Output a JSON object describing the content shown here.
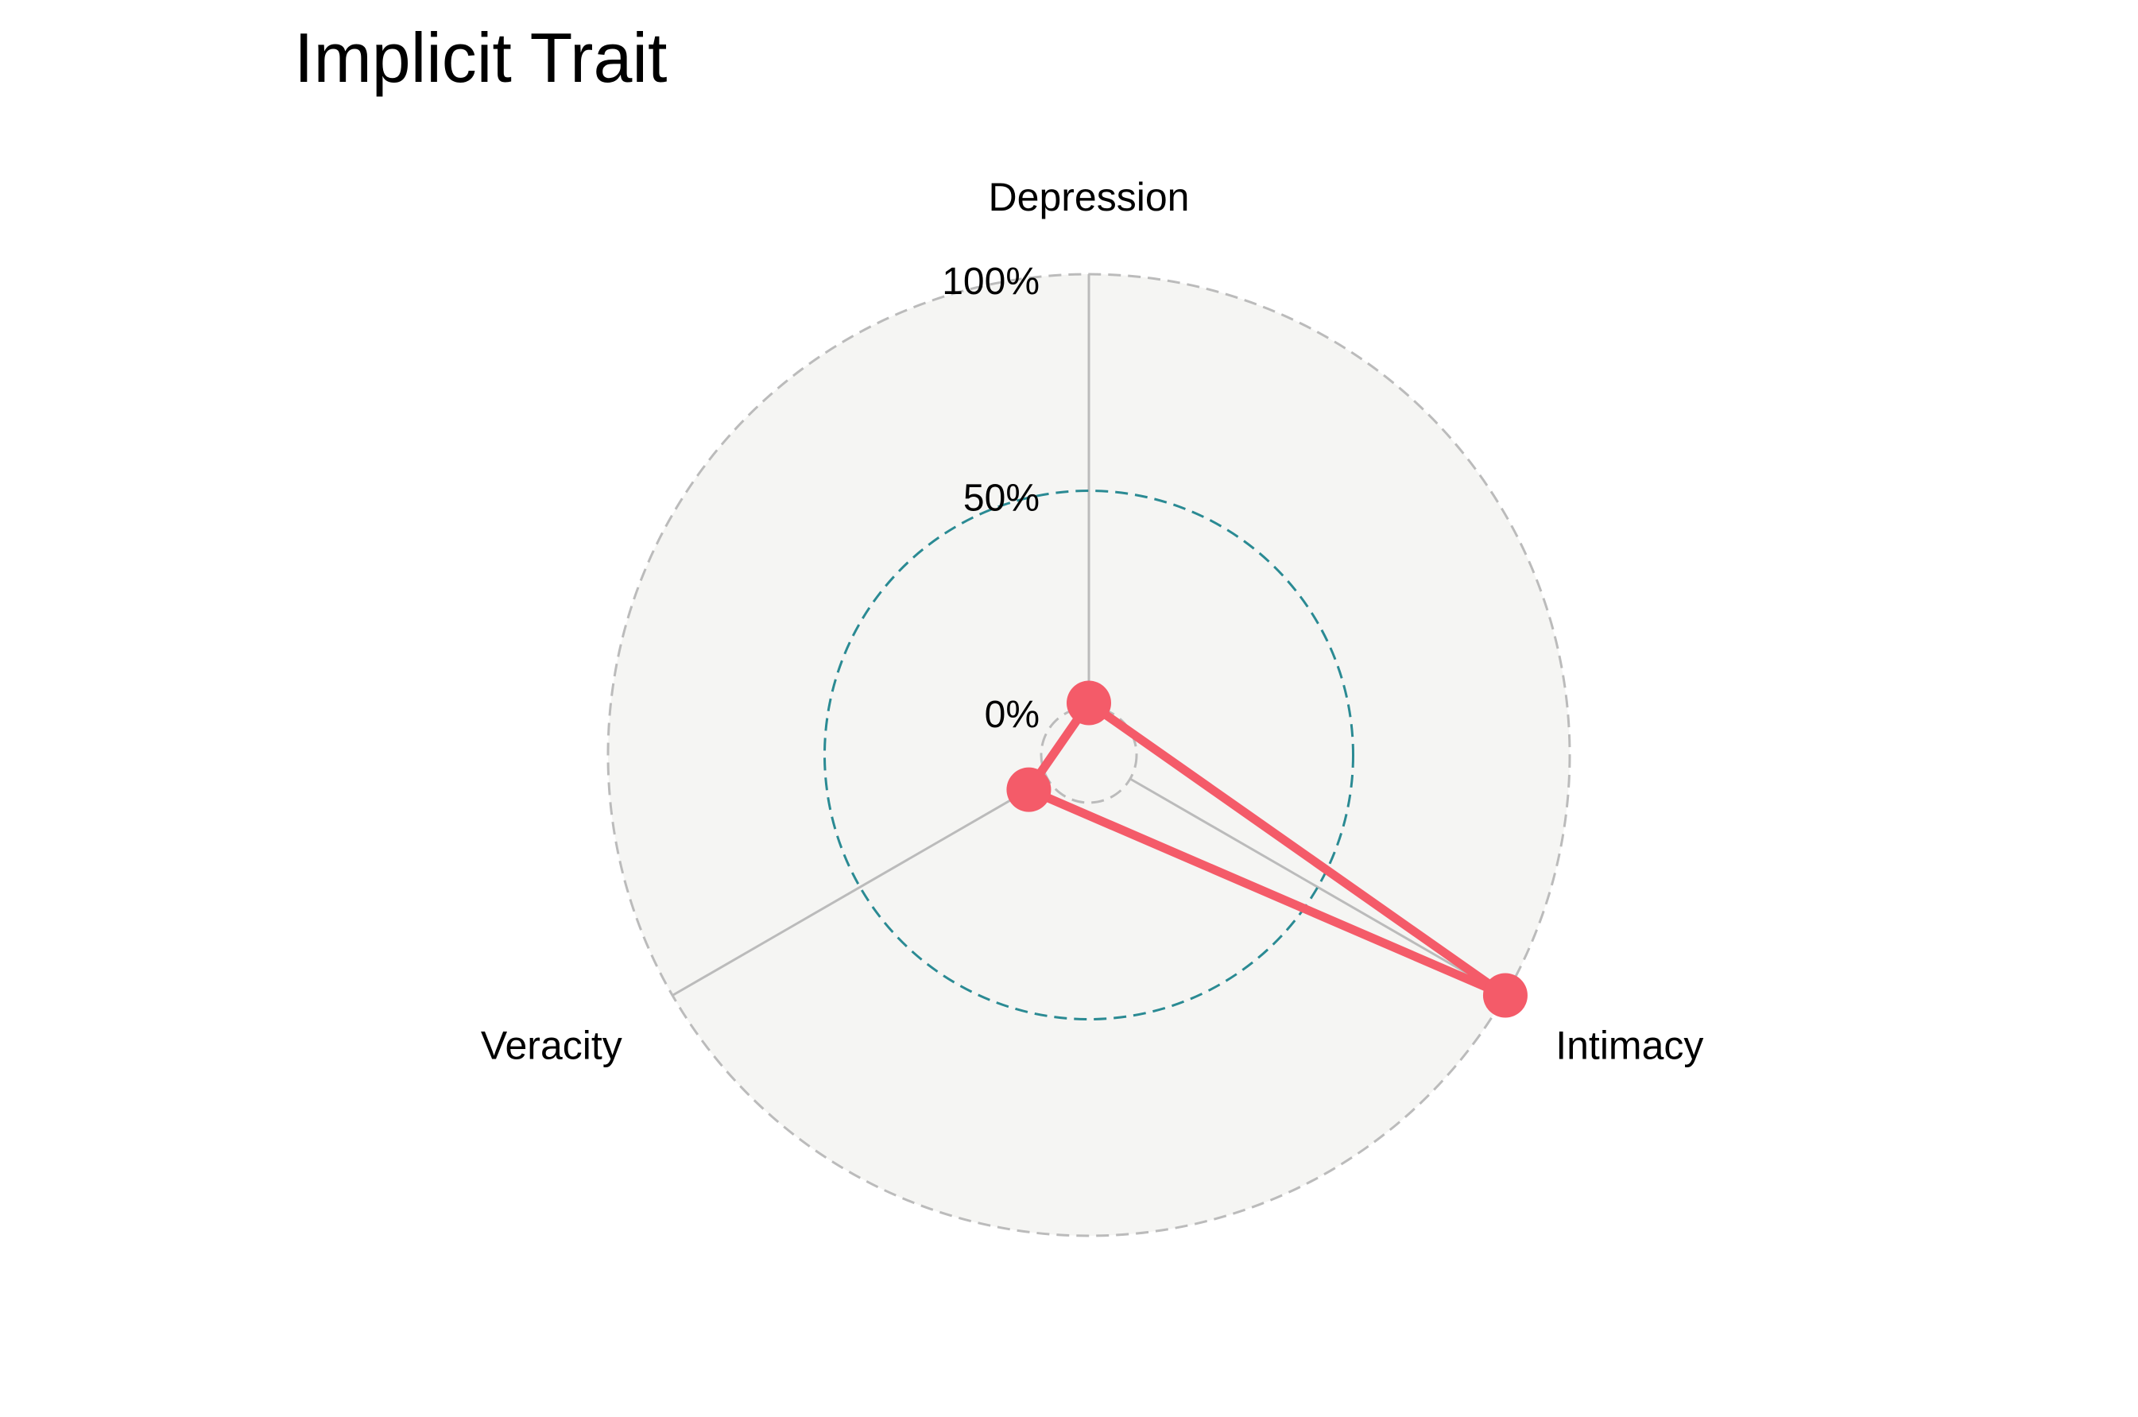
{
  "chart_data": {
    "type": "radar",
    "title": "Implicit Trait",
    "axes": [
      "Depression",
      "Intimacy",
      "Veracity"
    ],
    "series": [
      {
        "values": [
          0.01,
          1.0,
          0.05
        ]
      }
    ],
    "radial_ticks": [
      {
        "value": 0.0,
        "label": "0%"
      },
      {
        "value": 0.5,
        "label": "50%"
      },
      {
        "value": 1.0,
        "label": "100%"
      }
    ],
    "rlim": [
      0,
      1
    ],
    "grid": true,
    "legend": "none",
    "colors": {
      "series": "#f45b69",
      "mid_ring": "#2a8a93",
      "grid": "#bbbbbb",
      "plot_background": "#f5f5f3"
    }
  }
}
